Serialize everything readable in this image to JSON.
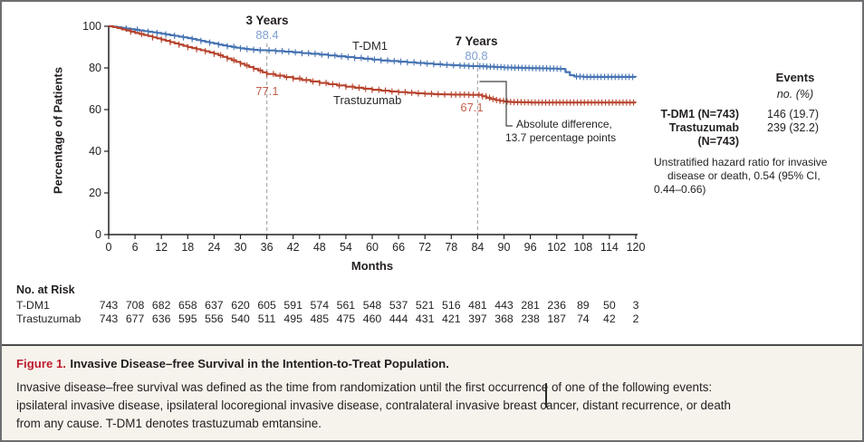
{
  "figure": {
    "caption_label": "Figure 1.",
    "caption_title": "Invasive Disease–free Survival in the Intention-to-Treat Population.",
    "caption_body_lines": [
      "Invasive disease–free survival was defined as the time from randomization until the first occurrence of one of the following events:",
      "ipsilateral invasive disease, ipsilateral locoregional invasive disease, contralateral invasive breast cancer, distant recurrence, or death",
      "from any cause. T-DM1 denotes trastuzumab emtansine."
    ]
  },
  "events_panel": {
    "header": "Events",
    "subheader": "no. (%)",
    "rows": [
      {
        "label": "T-DM1 (N=743)",
        "label2": "",
        "value": "146 (19.7)"
      },
      {
        "label": "Trastuzumab",
        "label2": "(N=743)",
        "value": "239 (32.2)"
      }
    ],
    "hr_lines": [
      "Unstratified hazard ratio for invasive",
      "disease or death, 0.54 (95% CI,",
      "0.44–0.66)"
    ]
  },
  "at_risk": {
    "title": "No. at Risk",
    "rows": [
      {
        "label": "T-DM1",
        "counts": [
          743,
          708,
          682,
          658,
          637,
          620,
          605,
          591,
          574,
          561,
          548,
          537,
          521,
          516,
          481,
          443,
          281,
          236,
          89,
          50,
          3
        ]
      },
      {
        "label": "Trastuzumab",
        "counts": [
          743,
          677,
          636,
          595,
          556,
          540,
          511,
          495,
          485,
          475,
          460,
          444,
          431,
          421,
          397,
          368,
          238,
          187,
          74,
          42,
          2
        ]
      }
    ]
  },
  "chart_data": {
    "type": "line",
    "subtype": "kaplan-meier-step",
    "title": "",
    "xlabel": "Months",
    "ylabel": "Percentage of Patients",
    "xlim": [
      0,
      120
    ],
    "ylim": [
      0,
      100
    ],
    "x_ticks": [
      0,
      6,
      12,
      18,
      24,
      30,
      36,
      42,
      48,
      54,
      60,
      66,
      72,
      78,
      84,
      90,
      96,
      102,
      108,
      114,
      120
    ],
    "y_ticks": [
      0,
      20,
      40,
      60,
      80,
      100
    ],
    "grid": false,
    "dashed_reference_x": [
      36,
      84
    ],
    "colors": {
      "tdm1": "#4673b2",
      "trastuzumab": "#b7442e",
      "tdm1_value_label": "#7f9fd0",
      "trastuzumab_value_label": "#c3604c",
      "dashed": "#b0afaf",
      "axis": "#231f20"
    },
    "annotations": {
      "three_years": {
        "label": "3 Years",
        "value_tdm1": "88.4",
        "value_trastuzumab": "77.1"
      },
      "seven_years": {
        "label": "7 Years",
        "value_tdm1": "80.8",
        "value_trastuzumab": "67.1"
      },
      "difference": {
        "line1": "Absolute difference,",
        "line2": "13.7 percentage points"
      }
    },
    "series": [
      {
        "name": "T-DM1",
        "color": "#4673b2",
        "points": [
          [
            0,
            100
          ],
          [
            1,
            99.8
          ],
          [
            2,
            99.5
          ],
          [
            3,
            99.2
          ],
          [
            4,
            98.9
          ],
          [
            5,
            98.6
          ],
          [
            6,
            98.3
          ],
          [
            7,
            98.0
          ],
          [
            8,
            97.7
          ],
          [
            9,
            97.4
          ],
          [
            10,
            97.1
          ],
          [
            11,
            96.8
          ],
          [
            12,
            96.4
          ],
          [
            13,
            96.1
          ],
          [
            14,
            95.7
          ],
          [
            15,
            95.4
          ],
          [
            16,
            95.0
          ],
          [
            17,
            94.7
          ],
          [
            18,
            94.3
          ],
          [
            19,
            93.9
          ],
          [
            20,
            93.4
          ],
          [
            21,
            93.0
          ],
          [
            22,
            92.5
          ],
          [
            23,
            92.1
          ],
          [
            24,
            91.7
          ],
          [
            25,
            91.2
          ],
          [
            26,
            90.8
          ],
          [
            27,
            90.4
          ],
          [
            28,
            90.1
          ],
          [
            29,
            89.7
          ],
          [
            30,
            89.4
          ],
          [
            31,
            89.1
          ],
          [
            32,
            88.9
          ],
          [
            33,
            88.7
          ],
          [
            34,
            88.5
          ],
          [
            36,
            88.4
          ],
          [
            38,
            88.1
          ],
          [
            40,
            87.8
          ],
          [
            42,
            87.5
          ],
          [
            44,
            87.1
          ],
          [
            46,
            86.8
          ],
          [
            48,
            86.4
          ],
          [
            50,
            86.0
          ],
          [
            52,
            85.6
          ],
          [
            54,
            85.2
          ],
          [
            56,
            84.8
          ],
          [
            58,
            84.4
          ],
          [
            60,
            84.0
          ],
          [
            62,
            83.6
          ],
          [
            64,
            83.3
          ],
          [
            66,
            83.0
          ],
          [
            68,
            82.7
          ],
          [
            70,
            82.4
          ],
          [
            72,
            82.1
          ],
          [
            74,
            81.8
          ],
          [
            76,
            81.5
          ],
          [
            78,
            81.3
          ],
          [
            80,
            81.1
          ],
          [
            82,
            80.9
          ],
          [
            84,
            80.8
          ],
          [
            86,
            80.6
          ],
          [
            88,
            80.4
          ],
          [
            90,
            80.2
          ],
          [
            92,
            80.1
          ],
          [
            94,
            80.0
          ],
          [
            96,
            79.9
          ],
          [
            98,
            79.8
          ],
          [
            100,
            79.7
          ],
          [
            102,
            79.6
          ],
          [
            103,
            79.5
          ],
          [
            104,
            78.0
          ],
          [
            105,
            76.5
          ],
          [
            106,
            75.9
          ],
          [
            108,
            75.7
          ],
          [
            110,
            75.7
          ],
          [
            120,
            75.6
          ]
        ],
        "censor_months": [
          4,
          6.5,
          9,
          11,
          13,
          15,
          17,
          19,
          21,
          23,
          25,
          27,
          28.5,
          30,
          31.5,
          33,
          34.5,
          36.5,
          38,
          39.5,
          41,
          42.5,
          44,
          45.5,
          47,
          48.5,
          50,
          51.5,
          53,
          54.5,
          56,
          57.5,
          59,
          60.5,
          62,
          63.5,
          65,
          66.5,
          68,
          69.5,
          71,
          72.5,
          74,
          75.5,
          77,
          78.5,
          80,
          81,
          82,
          83,
          84.5,
          85.3,
          86.1,
          86.9,
          87.7,
          88.5,
          89.3,
          90.1,
          90.9,
          91.7,
          92.5,
          93.3,
          94.1,
          94.9,
          95.7,
          96.5,
          97.3,
          98.1,
          98.9,
          99.7,
          100.5,
          101.3,
          102.1,
          102.9,
          106.5,
          107.3,
          108.1,
          108.9,
          109.7,
          110.5,
          111.3,
          112.1,
          112.9,
          113.7,
          114.5,
          115.3,
          116.1,
          116.9,
          117.7,
          118.5,
          119.3
        ]
      },
      {
        "name": "Trastuzumab",
        "color": "#b7442e",
        "points": [
          [
            0,
            100
          ],
          [
            1,
            99.6
          ],
          [
            2,
            99.1
          ],
          [
            3,
            98.5
          ],
          [
            4,
            98.0
          ],
          [
            5,
            97.4
          ],
          [
            6,
            96.8
          ],
          [
            7,
            96.3
          ],
          [
            8,
            95.8
          ],
          [
            9,
            95.3
          ],
          [
            10,
            94.7
          ],
          [
            11,
            94.2
          ],
          [
            12,
            93.6
          ],
          [
            13,
            93.0
          ],
          [
            14,
            92.4
          ],
          [
            15,
            91.8
          ],
          [
            16,
            91.2
          ],
          [
            17,
            90.6
          ],
          [
            18,
            90.0
          ],
          [
            19,
            89.5
          ],
          [
            20,
            89.0
          ],
          [
            21,
            88.5
          ],
          [
            22,
            88.0
          ],
          [
            23,
            87.4
          ],
          [
            24,
            86.8
          ],
          [
            25,
            86.1
          ],
          [
            26,
            85.3
          ],
          [
            27,
            84.5
          ],
          [
            28,
            83.7
          ],
          [
            29,
            82.9
          ],
          [
            30,
            82.0
          ],
          [
            31,
            81.2
          ],
          [
            32,
            80.4
          ],
          [
            33,
            79.6
          ],
          [
            34,
            78.8
          ],
          [
            35,
            77.9
          ],
          [
            36,
            77.1
          ],
          [
            38,
            76.3
          ],
          [
            40,
            75.6
          ],
          [
            42,
            74.9
          ],
          [
            44,
            74.2
          ],
          [
            46,
            73.5
          ],
          [
            48,
            72.8
          ],
          [
            50,
            72.2
          ],
          [
            52,
            71.6
          ],
          [
            54,
            71.0
          ],
          [
            56,
            70.5
          ],
          [
            58,
            70.0
          ],
          [
            60,
            69.5
          ],
          [
            62,
            69.1
          ],
          [
            64,
            68.7
          ],
          [
            66,
            68.4
          ],
          [
            68,
            68.1
          ],
          [
            70,
            67.8
          ],
          [
            72,
            67.6
          ],
          [
            74,
            67.4
          ],
          [
            76,
            67.3
          ],
          [
            78,
            67.2
          ],
          [
            82,
            67.1
          ],
          [
            84,
            67.1
          ],
          [
            85,
            66.4
          ],
          [
            86,
            65.7
          ],
          [
            87,
            65.1
          ],
          [
            88,
            64.6
          ],
          [
            89,
            64.2
          ],
          [
            90,
            63.9
          ],
          [
            91,
            63.7
          ],
          [
            92,
            63.6
          ],
          [
            94,
            63.5
          ],
          [
            96,
            63.4
          ],
          [
            120,
            63.3
          ]
        ],
        "censor_months": [
          5,
          7.5,
          10,
          12,
          14,
          16,
          18,
          20,
          22,
          24,
          25.5,
          27,
          28.5,
          30,
          31.5,
          33,
          34.5,
          36,
          37.5,
          39,
          40.5,
          42,
          43.5,
          45,
          46.5,
          48,
          49.5,
          51,
          52.5,
          54,
          55.5,
          57,
          58.5,
          60,
          61.5,
          63,
          64.5,
          66,
          67.5,
          69,
          70.5,
          72,
          73.5,
          75,
          76.5,
          78,
          79,
          80,
          81,
          82,
          83,
          84.3,
          85.1,
          85.9,
          86.7,
          87.5,
          88.3,
          89.1,
          89.9,
          90.7,
          91.5,
          92.3,
          93.1,
          93.9,
          94.7,
          95.5,
          96.3,
          97.1,
          97.9,
          98.7,
          99.5,
          100.3,
          101.1,
          101.9,
          102.7,
          103.5,
          104.3,
          105.1,
          105.9,
          106.7,
          107.5,
          108.3,
          109.1,
          109.9,
          110.7,
          111.5,
          112.3,
          113.1,
          113.9,
          114.7,
          115.5,
          116.3,
          117.1,
          117.9,
          118.7,
          119.5
        ]
      }
    ]
  }
}
